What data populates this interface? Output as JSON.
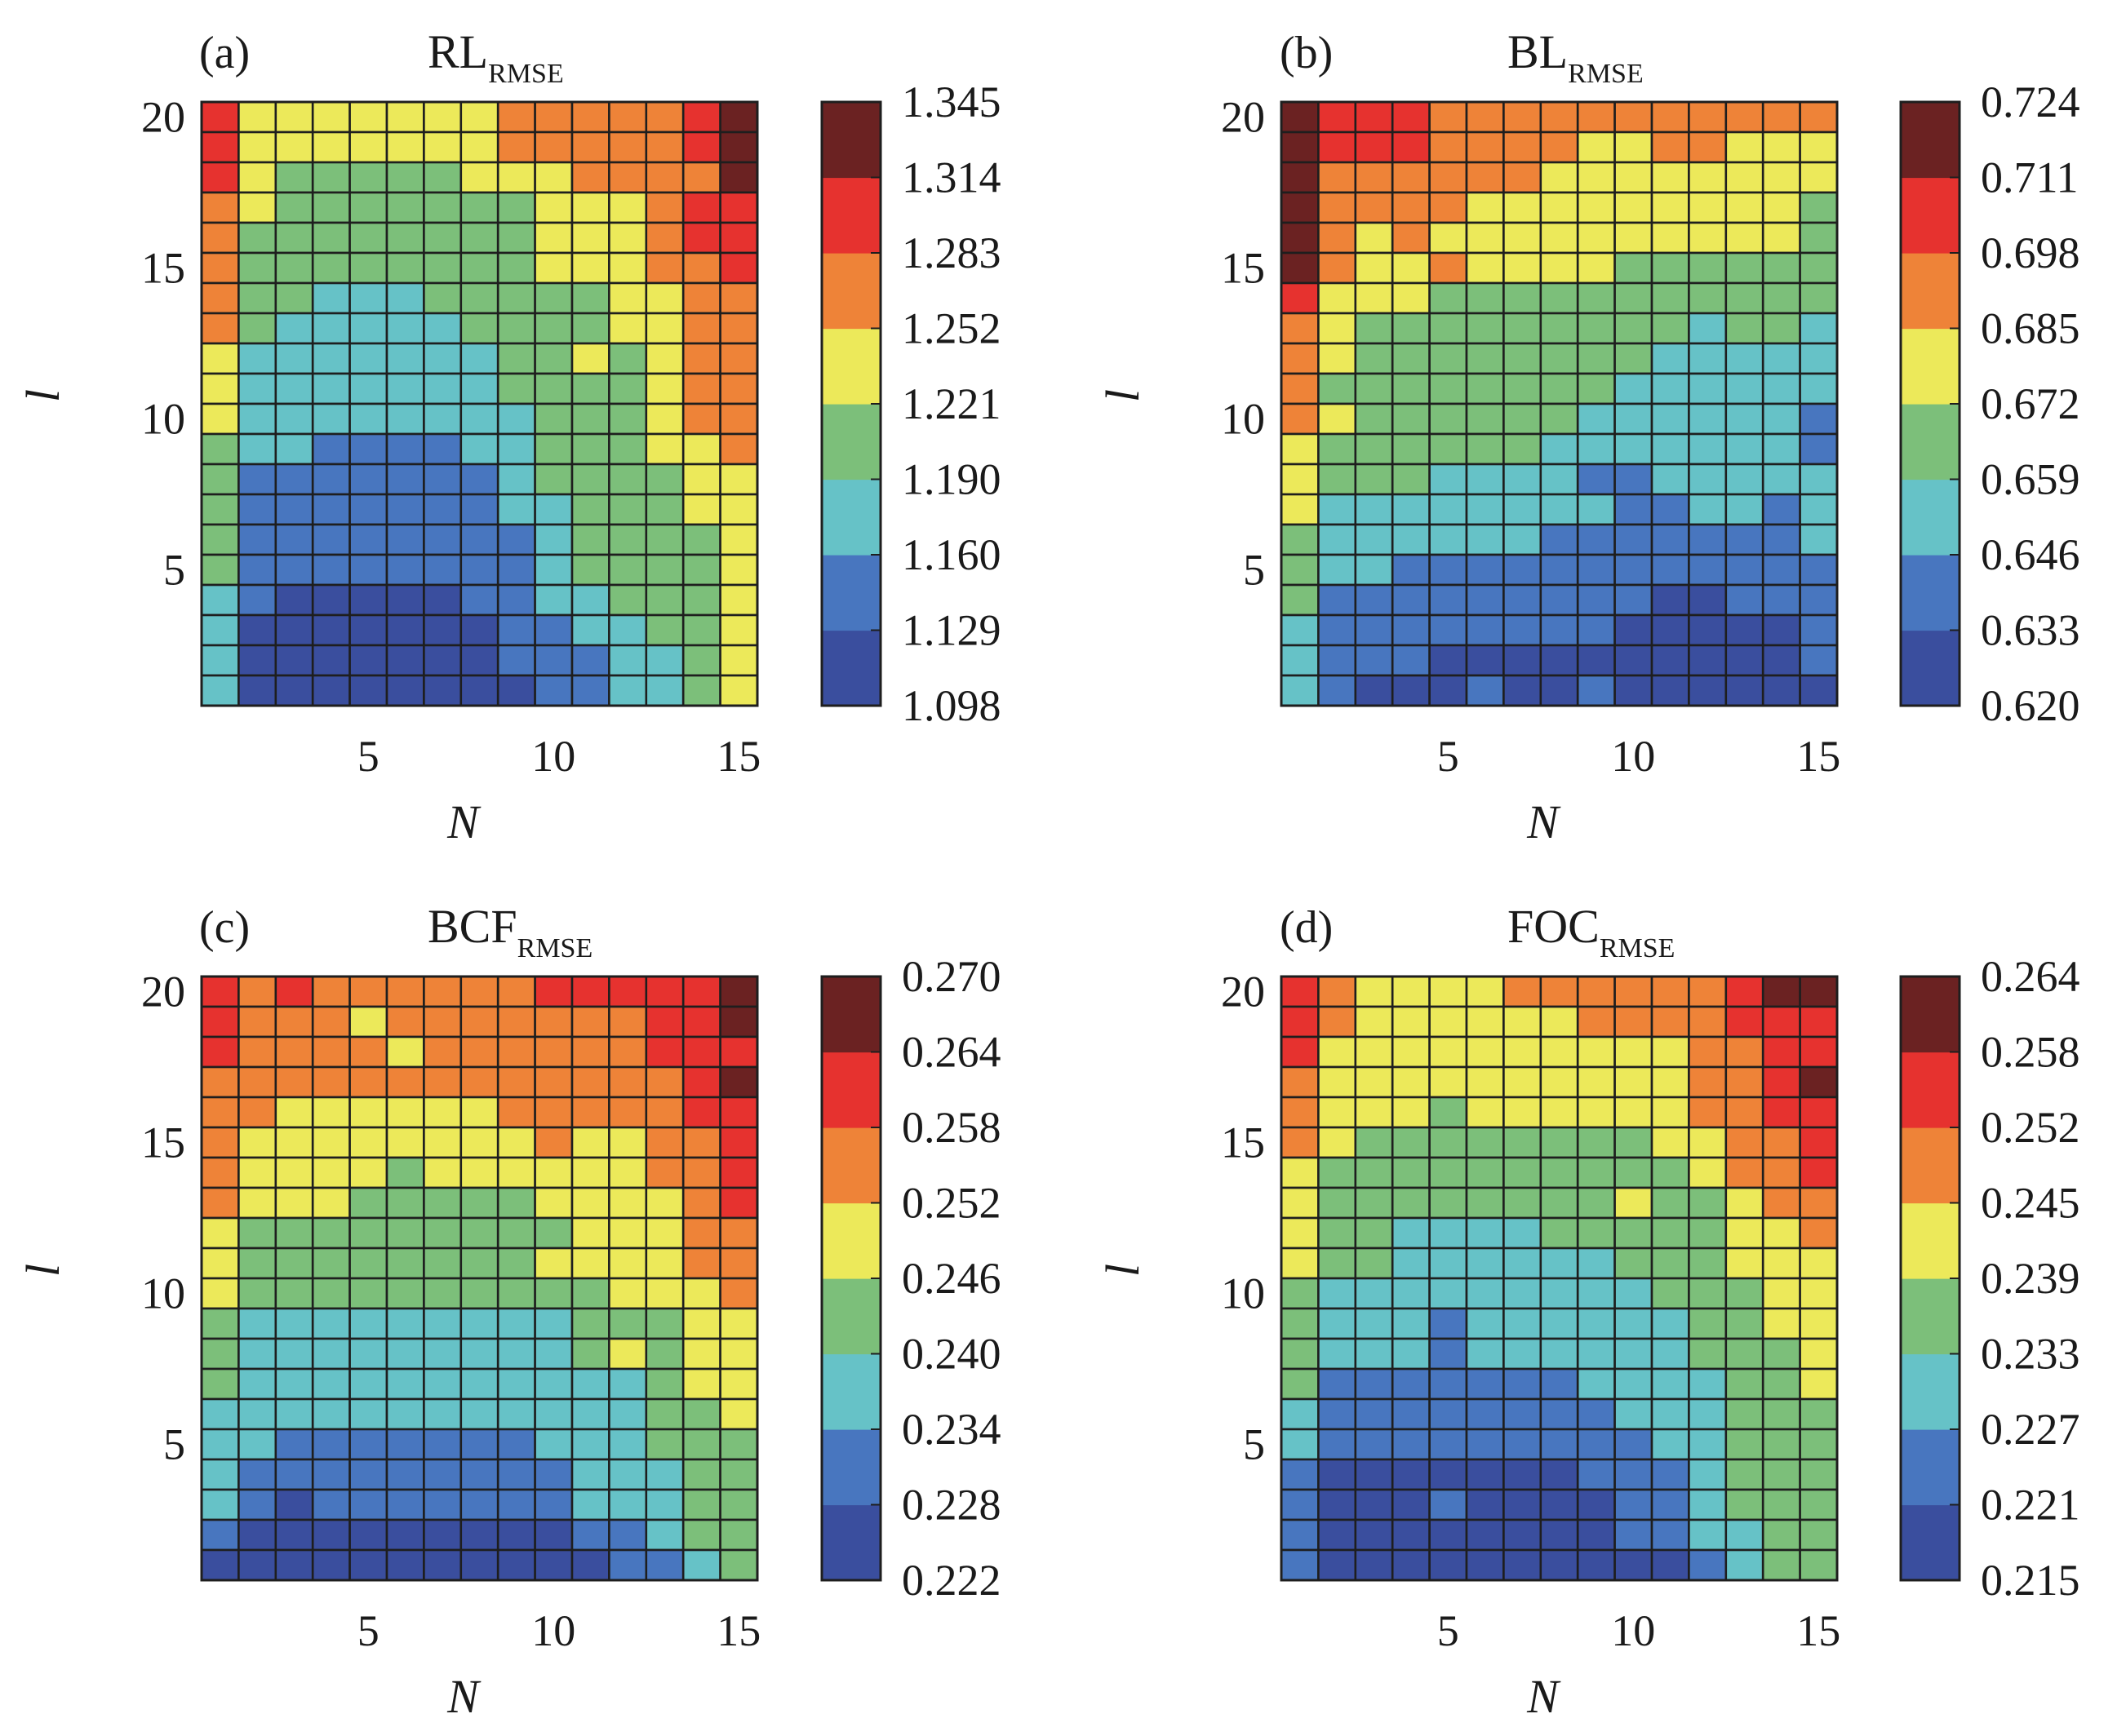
{
  "chart_data": [
    {
      "type": "heatmap",
      "panel": "(a)",
      "title": "RL",
      "title_subscript": "RMSE",
      "xlabel": "N",
      "ylabel": "l",
      "x_ticks": [
        5,
        10,
        15
      ],
      "y_ticks": [
        5,
        10,
        15,
        20
      ],
      "x_range": [
        1,
        15
      ],
      "y_range": [
        1,
        20
      ],
      "colorbar_ticks": [
        "1.098",
        "1.129",
        "1.160",
        "1.190",
        "1.221",
        "1.252",
        "1.283",
        "1.314",
        "1.345"
      ],
      "grid_levels_top_to_bottom": [
        [
          6,
          4,
          4,
          4,
          4,
          4,
          4,
          4,
          5,
          5,
          5,
          5,
          5,
          6,
          7
        ],
        [
          6,
          4,
          4,
          4,
          4,
          4,
          4,
          4,
          5,
          5,
          5,
          5,
          5,
          6,
          7
        ],
        [
          6,
          4,
          3,
          3,
          3,
          3,
          3,
          4,
          4,
          4,
          5,
          5,
          5,
          5,
          7
        ],
        [
          5,
          4,
          3,
          3,
          3,
          3,
          3,
          3,
          3,
          4,
          4,
          4,
          5,
          6,
          6
        ],
        [
          5,
          3,
          3,
          3,
          3,
          3,
          3,
          3,
          3,
          4,
          4,
          4,
          5,
          6,
          6
        ],
        [
          5,
          3,
          3,
          3,
          3,
          3,
          3,
          3,
          3,
          4,
          4,
          4,
          5,
          5,
          6
        ],
        [
          5,
          3,
          3,
          2,
          2,
          2,
          3,
          3,
          3,
          3,
          3,
          4,
          4,
          5,
          5
        ],
        [
          5,
          3,
          2,
          2,
          2,
          2,
          2,
          3,
          3,
          3,
          3,
          4,
          4,
          5,
          5
        ],
        [
          4,
          2,
          2,
          2,
          2,
          2,
          2,
          2,
          3,
          3,
          4,
          3,
          4,
          5,
          5
        ],
        [
          4,
          2,
          2,
          2,
          2,
          2,
          2,
          2,
          3,
          3,
          3,
          3,
          4,
          5,
          5
        ],
        [
          4,
          2,
          2,
          2,
          2,
          2,
          2,
          2,
          2,
          3,
          3,
          3,
          4,
          5,
          5
        ],
        [
          3,
          2,
          2,
          1,
          1,
          1,
          1,
          2,
          2,
          3,
          3,
          3,
          4,
          4,
          5
        ],
        [
          3,
          1,
          1,
          1,
          1,
          1,
          1,
          1,
          2,
          3,
          3,
          3,
          3,
          4,
          4
        ],
        [
          3,
          1,
          1,
          1,
          1,
          1,
          1,
          1,
          2,
          2,
          3,
          3,
          3,
          4,
          4
        ],
        [
          3,
          1,
          1,
          1,
          1,
          1,
          1,
          1,
          1,
          2,
          3,
          3,
          3,
          3,
          4
        ],
        [
          3,
          1,
          1,
          1,
          1,
          1,
          1,
          1,
          1,
          2,
          3,
          3,
          3,
          3,
          4
        ],
        [
          2,
          1,
          0,
          0,
          0,
          0,
          0,
          1,
          1,
          2,
          2,
          3,
          3,
          3,
          4
        ],
        [
          2,
          0,
          0,
          0,
          0,
          0,
          0,
          0,
          1,
          1,
          2,
          2,
          3,
          3,
          4
        ],
        [
          2,
          0,
          0,
          0,
          0,
          0,
          0,
          0,
          1,
          1,
          1,
          2,
          2,
          3,
          4
        ],
        [
          2,
          0,
          0,
          0,
          0,
          0,
          0,
          0,
          0,
          1,
          1,
          2,
          2,
          3,
          4
        ]
      ]
    },
    {
      "type": "heatmap",
      "panel": "(b)",
      "title": "BL",
      "title_subscript": "RMSE",
      "xlabel": "N",
      "ylabel": "l",
      "x_ticks": [
        5,
        10,
        15
      ],
      "y_ticks": [
        5,
        10,
        15,
        20
      ],
      "x_range": [
        1,
        15
      ],
      "y_range": [
        1,
        20
      ],
      "colorbar_ticks": [
        "0.620",
        "0.633",
        "0.646",
        "0.659",
        "0.672",
        "0.685",
        "0.698",
        "0.711",
        "0.724"
      ],
      "grid_levels_top_to_bottom": [
        [
          7,
          6,
          6,
          6,
          5,
          5,
          5,
          5,
          5,
          5,
          5,
          5,
          5,
          5,
          5
        ],
        [
          7,
          6,
          6,
          6,
          5,
          5,
          5,
          5,
          4,
          4,
          5,
          5,
          4,
          4,
          4
        ],
        [
          7,
          5,
          5,
          5,
          5,
          5,
          5,
          4,
          4,
          4,
          4,
          4,
          4,
          4,
          4
        ],
        [
          7,
          5,
          5,
          5,
          5,
          4,
          4,
          4,
          4,
          4,
          4,
          4,
          4,
          4,
          3
        ],
        [
          7,
          5,
          4,
          5,
          4,
          4,
          4,
          4,
          4,
          4,
          4,
          4,
          4,
          4,
          3
        ],
        [
          7,
          5,
          4,
          4,
          5,
          4,
          4,
          4,
          4,
          3,
          3,
          3,
          3,
          3,
          3
        ],
        [
          6,
          4,
          4,
          4,
          3,
          3,
          3,
          3,
          3,
          3,
          3,
          3,
          3,
          3,
          3
        ],
        [
          5,
          4,
          3,
          3,
          3,
          3,
          3,
          3,
          3,
          3,
          3,
          2,
          3,
          3,
          2
        ],
        [
          5,
          4,
          3,
          3,
          3,
          3,
          3,
          3,
          3,
          3,
          2,
          2,
          2,
          2,
          2
        ],
        [
          5,
          3,
          3,
          3,
          3,
          3,
          3,
          3,
          3,
          2,
          2,
          2,
          2,
          2,
          2
        ],
        [
          5,
          4,
          3,
          3,
          3,
          3,
          3,
          3,
          2,
          2,
          2,
          2,
          2,
          2,
          1
        ],
        [
          4,
          3,
          3,
          3,
          3,
          3,
          3,
          2,
          2,
          2,
          2,
          2,
          2,
          2,
          1
        ],
        [
          4,
          3,
          3,
          3,
          2,
          2,
          2,
          2,
          1,
          1,
          2,
          2,
          2,
          2,
          2
        ],
        [
          4,
          2,
          2,
          2,
          2,
          2,
          2,
          2,
          2,
          1,
          1,
          2,
          2,
          1,
          2
        ],
        [
          3,
          2,
          2,
          2,
          2,
          2,
          2,
          1,
          1,
          1,
          1,
          1,
          1,
          1,
          2
        ],
        [
          3,
          2,
          2,
          1,
          1,
          1,
          1,
          1,
          1,
          1,
          1,
          1,
          1,
          1,
          1
        ],
        [
          3,
          1,
          1,
          1,
          1,
          1,
          1,
          1,
          1,
          1,
          0,
          0,
          1,
          1,
          1
        ],
        [
          2,
          1,
          1,
          1,
          1,
          1,
          1,
          1,
          1,
          0,
          0,
          0,
          0,
          0,
          1
        ],
        [
          2,
          1,
          1,
          1,
          0,
          0,
          0,
          0,
          0,
          0,
          0,
          0,
          0,
          0,
          1
        ],
        [
          2,
          1,
          0,
          0,
          0,
          1,
          0,
          0,
          1,
          0,
          0,
          0,
          0,
          0,
          0
        ]
      ]
    },
    {
      "type": "heatmap",
      "panel": "(c)",
      "title": "BCF",
      "title_subscript": "RMSE",
      "xlabel": "N",
      "ylabel": "l",
      "x_ticks": [
        5,
        10,
        15
      ],
      "y_ticks": [
        5,
        10,
        15,
        20
      ],
      "x_range": [
        1,
        15
      ],
      "y_range": [
        1,
        20
      ],
      "colorbar_ticks": [
        "0.222",
        "0.228",
        "0.234",
        "0.240",
        "0.246",
        "0.252",
        "0.258",
        "0.264",
        "0.270"
      ],
      "grid_levels_top_to_bottom": [
        [
          6,
          5,
          6,
          5,
          5,
          5,
          5,
          5,
          5,
          6,
          6,
          6,
          6,
          6,
          7
        ],
        [
          6,
          5,
          5,
          5,
          4,
          5,
          5,
          5,
          5,
          5,
          5,
          5,
          6,
          6,
          7
        ],
        [
          6,
          5,
          5,
          5,
          5,
          4,
          5,
          5,
          5,
          5,
          5,
          5,
          6,
          6,
          6
        ],
        [
          5,
          5,
          5,
          5,
          5,
          5,
          5,
          5,
          5,
          5,
          5,
          5,
          5,
          6,
          7
        ],
        [
          5,
          5,
          4,
          4,
          4,
          4,
          4,
          4,
          5,
          5,
          5,
          5,
          5,
          6,
          6
        ],
        [
          5,
          4,
          4,
          4,
          4,
          4,
          4,
          4,
          4,
          5,
          4,
          4,
          5,
          5,
          6
        ],
        [
          5,
          4,
          4,
          4,
          4,
          3,
          4,
          4,
          4,
          4,
          4,
          4,
          5,
          5,
          6
        ],
        [
          5,
          4,
          4,
          4,
          3,
          3,
          3,
          3,
          3,
          4,
          4,
          4,
          4,
          5,
          6
        ],
        [
          4,
          3,
          3,
          3,
          3,
          3,
          3,
          3,
          3,
          3,
          4,
          4,
          4,
          5,
          5
        ],
        [
          4,
          3,
          3,
          3,
          3,
          3,
          3,
          3,
          3,
          4,
          4,
          4,
          4,
          5,
          5
        ],
        [
          4,
          3,
          3,
          3,
          3,
          3,
          3,
          3,
          3,
          3,
          3,
          4,
          4,
          4,
          5
        ],
        [
          3,
          2,
          2,
          2,
          2,
          2,
          2,
          2,
          2,
          2,
          3,
          3,
          3,
          4,
          4
        ],
        [
          3,
          2,
          2,
          2,
          2,
          2,
          2,
          2,
          2,
          2,
          3,
          4,
          3,
          4,
          4
        ],
        [
          3,
          2,
          2,
          2,
          2,
          2,
          2,
          2,
          2,
          2,
          2,
          2,
          3,
          4,
          4
        ],
        [
          2,
          2,
          2,
          2,
          2,
          2,
          2,
          2,
          2,
          2,
          2,
          2,
          3,
          3,
          4
        ],
        [
          2,
          2,
          1,
          1,
          1,
          1,
          1,
          1,
          1,
          2,
          2,
          2,
          3,
          3,
          3
        ],
        [
          2,
          1,
          1,
          1,
          1,
          1,
          1,
          1,
          1,
          1,
          2,
          2,
          2,
          3,
          3
        ],
        [
          2,
          1,
          0,
          1,
          1,
          1,
          1,
          1,
          1,
          1,
          2,
          2,
          2,
          3,
          3
        ],
        [
          1,
          0,
          0,
          0,
          0,
          0,
          0,
          0,
          0,
          0,
          1,
          1,
          2,
          3,
          3
        ],
        [
          0,
          0,
          0,
          0,
          0,
          0,
          0,
          0,
          0,
          0,
          0,
          1,
          1,
          2,
          3
        ]
      ]
    },
    {
      "type": "heatmap",
      "panel": "(d)",
      "title": "FOC",
      "title_subscript": "RMSE",
      "xlabel": "N",
      "ylabel": "l",
      "x_ticks": [
        5,
        10,
        15
      ],
      "y_ticks": [
        5,
        10,
        15,
        20
      ],
      "x_range": [
        1,
        15
      ],
      "y_range": [
        1,
        20
      ],
      "colorbar_ticks": [
        "0.215",
        "0.221",
        "0.227",
        "0.233",
        "0.239",
        "0.245",
        "0.252",
        "0.258",
        "0.264"
      ],
      "grid_levels_top_to_bottom": [
        [
          6,
          5,
          4,
          4,
          4,
          4,
          5,
          5,
          5,
          5,
          5,
          5,
          6,
          7,
          7
        ],
        [
          6,
          5,
          4,
          4,
          4,
          4,
          4,
          4,
          5,
          5,
          5,
          5,
          6,
          6,
          6
        ],
        [
          6,
          4,
          4,
          4,
          4,
          4,
          4,
          4,
          4,
          4,
          4,
          5,
          5,
          6,
          6
        ],
        [
          5,
          4,
          4,
          4,
          4,
          4,
          4,
          4,
          4,
          4,
          4,
          5,
          5,
          6,
          7
        ],
        [
          5,
          4,
          4,
          4,
          3,
          4,
          4,
          4,
          4,
          4,
          4,
          5,
          5,
          6,
          6
        ],
        [
          5,
          4,
          3,
          3,
          3,
          3,
          3,
          3,
          3,
          3,
          4,
          4,
          5,
          5,
          6
        ],
        [
          4,
          3,
          3,
          3,
          3,
          3,
          3,
          3,
          3,
          3,
          3,
          4,
          5,
          5,
          6
        ],
        [
          4,
          3,
          3,
          3,
          3,
          3,
          3,
          3,
          3,
          4,
          3,
          3,
          4,
          5,
          5
        ],
        [
          4,
          3,
          3,
          2,
          2,
          2,
          2,
          3,
          3,
          3,
          3,
          3,
          4,
          4,
          5
        ],
        [
          4,
          3,
          3,
          2,
          2,
          2,
          2,
          2,
          2,
          3,
          3,
          3,
          4,
          4,
          4
        ],
        [
          3,
          2,
          2,
          2,
          2,
          2,
          2,
          2,
          2,
          2,
          3,
          3,
          3,
          4,
          4
        ],
        [
          3,
          2,
          2,
          2,
          1,
          2,
          2,
          2,
          2,
          2,
          2,
          3,
          3,
          4,
          4
        ],
        [
          3,
          2,
          2,
          2,
          1,
          2,
          2,
          2,
          2,
          2,
          2,
          3,
          3,
          3,
          4
        ],
        [
          3,
          1,
          1,
          1,
          1,
          1,
          1,
          1,
          2,
          2,
          2,
          2,
          3,
          3,
          4
        ],
        [
          2,
          1,
          1,
          1,
          1,
          1,
          1,
          1,
          1,
          2,
          2,
          2,
          3,
          3,
          3
        ],
        [
          2,
          1,
          1,
          1,
          1,
          1,
          1,
          1,
          1,
          1,
          2,
          2,
          3,
          3,
          3
        ],
        [
          1,
          0,
          0,
          0,
          0,
          0,
          0,
          0,
          1,
          1,
          1,
          2,
          3,
          3,
          3
        ],
        [
          1,
          0,
          0,
          0,
          1,
          0,
          0,
          0,
          0,
          1,
          1,
          2,
          3,
          3,
          3
        ],
        [
          1,
          0,
          0,
          0,
          0,
          0,
          0,
          0,
          0,
          1,
          1,
          2,
          2,
          3,
          3
        ],
        [
          1,
          0,
          0,
          0,
          0,
          0,
          0,
          0,
          0,
          0,
          0,
          1,
          2,
          3,
          3
        ]
      ]
    }
  ],
  "colormap": [
    "#3a4e9e",
    "#4876bf",
    "#66c2c7",
    "#7cbf7a",
    "#ece95a",
    "#ee8338",
    "#e6322f",
    "#6b2222"
  ]
}
